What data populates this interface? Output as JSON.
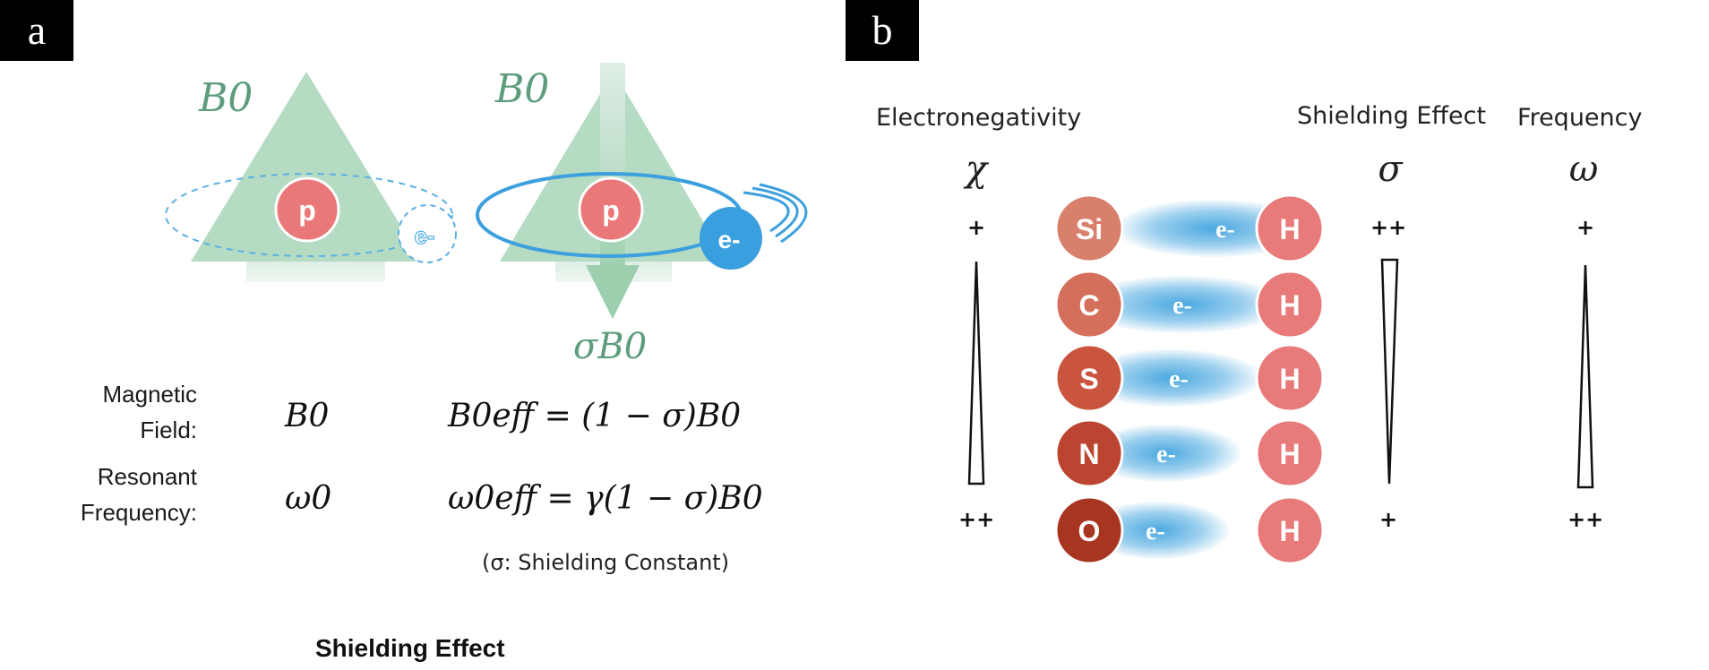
{
  "panel_a": {
    "tag": "a",
    "field_label_left": "B0",
    "field_label_right": "B0",
    "shield_field_label": "σB0",
    "proton_label": "p",
    "electron_label_faded": "e-",
    "electron_label": "e-",
    "rows": [
      {
        "label_line1": "Magnetic",
        "label_line2": "Field:",
        "plain": "B0",
        "effective": "B0eff = (1 − σ)B0"
      },
      {
        "label_line1": "Resonant",
        "label_line2": "Frequency:",
        "plain": "ω0",
        "effective": "ω0eff = γ(1 − σ)B0"
      }
    ],
    "note": "(σ: Shielding Constant)",
    "caption": "Shielding Effect"
  },
  "panel_b": {
    "tag": "b",
    "headers": {
      "electronegativity": "Electronegativity",
      "shielding": "Shielding Effect",
      "frequency": "Frequency"
    },
    "symbols": {
      "electronegativity": "χ",
      "shielding": "σ",
      "frequency": "ω"
    },
    "electronegativity_top": "+",
    "electronegativity_bottom": "++",
    "shielding_top": "++",
    "shielding_bottom": "+",
    "frequency_top": "+",
    "frequency_bottom": "++",
    "bonds": [
      {
        "atom": "Si",
        "partner": "H",
        "electron": "e-",
        "color": "#d9806c"
      },
      {
        "atom": "C",
        "partner": "H",
        "electron": "e-",
        "color": "#d46f5b"
      },
      {
        "atom": "S",
        "partner": "H",
        "electron": "e-",
        "color": "#c9553f"
      },
      {
        "atom": "N",
        "partner": "H",
        "electron": "e-",
        "color": "#bb4530"
      },
      {
        "atom": "O",
        "partner": "H",
        "electron": "e-",
        "color": "#a83520"
      }
    ],
    "colors": {
      "hydrogen": "#e87a7a",
      "electron_cloud": "#4aa8e0"
    }
  }
}
